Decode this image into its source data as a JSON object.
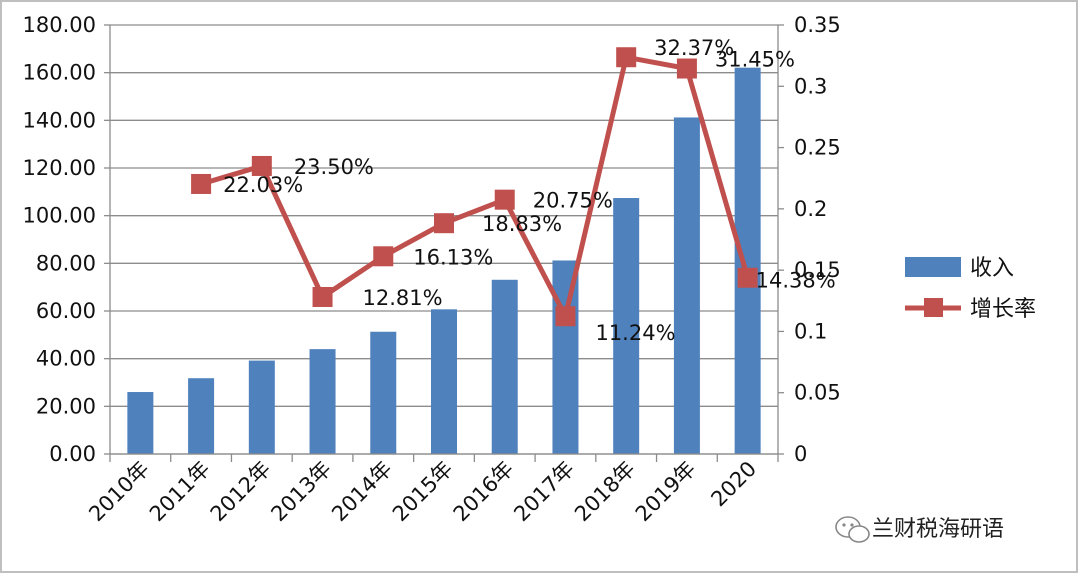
{
  "chart_data": {
    "type": "bar+line",
    "categories": [
      "2010年",
      "2011年",
      "2012年",
      "2013年",
      "2014年",
      "2015年",
      "2016年",
      "2017年",
      "2018年",
      "2019年",
      "2020"
    ],
    "series": [
      {
        "name": "收入",
        "type": "bar",
        "axis": "left",
        "color": "#4f81bd",
        "values": [
          26,
          31.8,
          39.2,
          44.0,
          51.3,
          60.7,
          73.1,
          81.2,
          107.4,
          141.2,
          162.1
        ]
      },
      {
        "name": "增长率",
        "type": "line",
        "axis": "right",
        "color": "#c0504d",
        "values": [
          null,
          0.2203,
          0.235,
          0.1281,
          0.1613,
          0.1883,
          0.2075,
          0.1124,
          0.3237,
          0.3145,
          0.1438
        ],
        "labels": [
          "",
          "22.03%",
          "23.50%",
          "12.81%",
          "16.13%",
          "18.83%",
          "20.75%",
          "11.24%",
          "32.37%",
          "31.45%",
          "14.38%"
        ]
      }
    ],
    "left_axis": {
      "ylim": [
        0,
        180
      ],
      "ticks": [
        "0.00",
        "20.00",
        "40.00",
        "60.00",
        "80.00",
        "100.00",
        "120.00",
        "140.00",
        "160.00",
        "180.00"
      ]
    },
    "right_axis": {
      "ylim": [
        0,
        0.35
      ],
      "ticks": [
        "0",
        "0.05",
        "0.1",
        "0.15",
        "0.2",
        "0.25",
        "0.3",
        "0.35"
      ]
    },
    "grid": true,
    "legend": {
      "position": "right",
      "items": [
        "收入",
        "增长率"
      ]
    }
  },
  "watermark": {
    "text": "兰财税海研语",
    "icon": "wechat-icon"
  }
}
